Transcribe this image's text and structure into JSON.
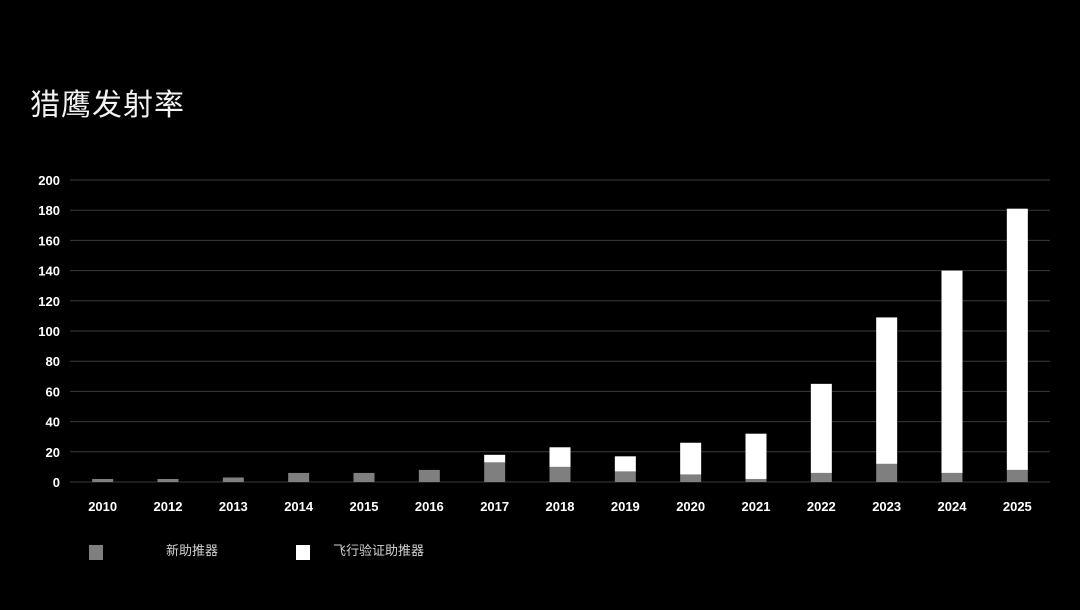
{
  "title": "猎鹰发射率",
  "colors": {
    "background": "#000000",
    "grid": "#3a3a3a",
    "series_new": "#7f7f7f",
    "series_reflown": "#ffffff"
  },
  "chart_data": {
    "type": "bar",
    "stacked": true,
    "title": "猎鹰发射率",
    "categories": [
      "2010",
      "2012",
      "2013",
      "2014",
      "2015",
      "2016",
      "2017",
      "2018",
      "2019",
      "2020",
      "2021",
      "2022",
      "2023",
      "2024",
      "2025"
    ],
    "series": [
      {
        "name": "新助推器",
        "color": "#7f7f7f",
        "values": [
          2,
          2,
          3,
          6,
          6,
          8,
          13,
          10,
          7,
          5,
          2,
          6,
          12,
          6,
          8
        ]
      },
      {
        "name": "飞行验证助推器",
        "color": "#ffffff",
        "values": [
          0,
          0,
          0,
          0,
          0,
          0,
          5,
          13,
          10,
          21,
          30,
          59,
          97,
          134,
          173
        ]
      }
    ],
    "ylim": [
      0,
      200
    ],
    "yticks": [
      "0",
      "20",
      "40",
      "60",
      "80",
      "100",
      "120",
      "140",
      "160",
      "180",
      "200"
    ],
    "grid": true,
    "legend": "bottom-left"
  }
}
